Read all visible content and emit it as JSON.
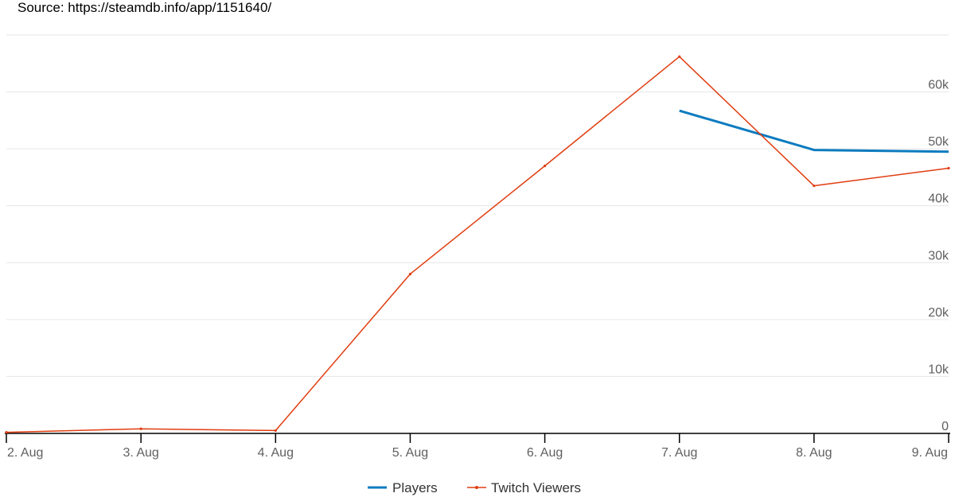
{
  "source_text": "Source: https://steamdb.info/app/1151640/",
  "chart_data": {
    "type": "line",
    "categories": [
      "2. Aug",
      "3. Aug",
      "4. Aug",
      "5. Aug",
      "6. Aug",
      "7. Aug",
      "8. Aug",
      "9. Aug"
    ],
    "y_ticks": [
      "0",
      "10k",
      "20k",
      "30k",
      "40k",
      "50k",
      "60k"
    ],
    "ylim": [
      0,
      70000
    ],
    "grid": true,
    "legend_position": "bottom",
    "series": [
      {
        "name": "Players",
        "color": "#0c7bbf",
        "values": [
          null,
          null,
          null,
          null,
          null,
          56700,
          49800,
          49500
        ]
      },
      {
        "name": "Twitch Viewers",
        "color": "#e03d10",
        "values": [
          200,
          800,
          500,
          28000,
          47000,
          66200,
          43500,
          46600
        ]
      }
    ]
  }
}
